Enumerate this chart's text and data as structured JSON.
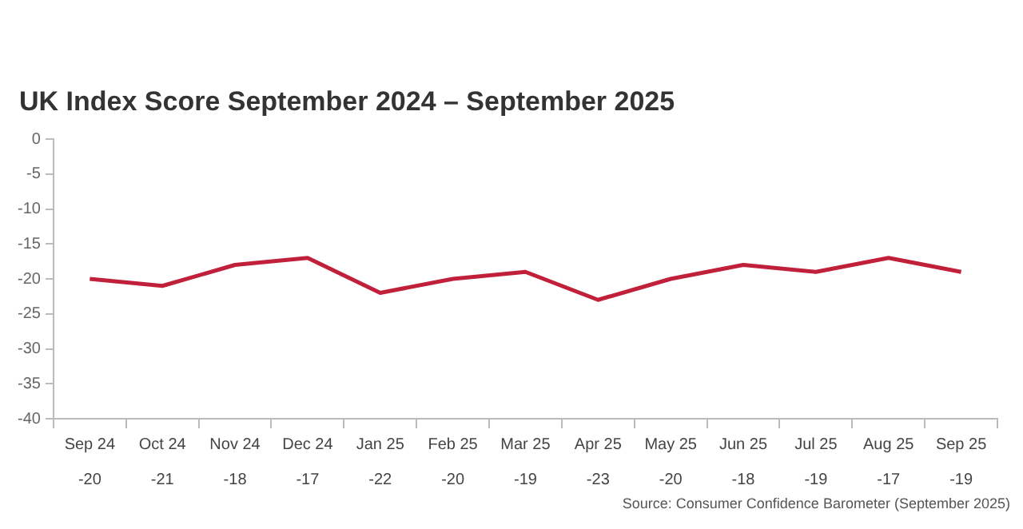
{
  "chart_data": {
    "type": "line",
    "title": "UK Index Score September 2024 – September 2025",
    "categories": [
      "Sep 24",
      "Oct 24",
      "Nov 24",
      "Dec 24",
      "Jan 25",
      "Feb 25",
      "Mar 25",
      "Apr 25",
      "May 25",
      "Jun 25",
      "Jul 25",
      "Aug 25",
      "Sep 25"
    ],
    "series": [
      {
        "color": "#c0203a",
        "values": [
          -20,
          -21,
          -18,
          -17,
          -22,
          -20,
          -19,
          -23,
          -20,
          -18,
          -19,
          -17,
          -19
        ]
      }
    ],
    "ylim": [
      -40,
      0
    ],
    "yticks": [
      -40,
      -35,
      -30,
      -25,
      -20,
      -15,
      -10,
      -5,
      0
    ],
    "grid": false,
    "legend": false,
    "marker": "none",
    "line_style": "solid",
    "data_labels": true,
    "annotations": [
      "Source: Consumer Confidence Barometer (September 2025)"
    ]
  }
}
